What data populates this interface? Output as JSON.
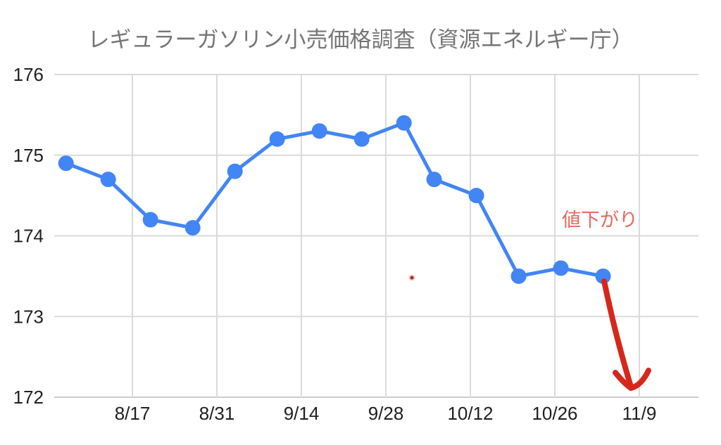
{
  "chart_data": {
    "type": "line",
    "title": "レギュラーガソリン小売価格調査（資源エネルギー庁）",
    "title_color": "#757575",
    "series": [
      {
        "name": "レギュラーガソリン小売価格",
        "color": "#4285f4",
        "points": [
          {
            "x_day": -11,
            "value": 174.9
          },
          {
            "x_day": -4,
            "value": 174.7
          },
          {
            "x_day": 3,
            "value": 174.2
          },
          {
            "x_day": 10,
            "value": 174.1
          },
          {
            "x_day": 17,
            "value": 174.8
          },
          {
            "x_day": 24,
            "value": 175.2
          },
          {
            "x_day": 31,
            "value": 175.3
          },
          {
            "x_day": 38,
            "value": 175.2
          },
          {
            "x_day": 45,
            "value": 175.4
          },
          {
            "x_day": 50,
            "value": 174.7
          },
          {
            "x_day": 57,
            "value": 174.5
          },
          {
            "x_day": 64,
            "value": 173.5
          },
          {
            "x_day": 71,
            "value": 173.6
          },
          {
            "x_day": 78,
            "value": 173.5
          }
        ]
      }
    ],
    "x_axis": {
      "tick_labels": [
        "8/17",
        "8/31",
        "9/14",
        "9/28",
        "10/12",
        "10/26",
        "11/9"
      ],
      "tick_days": [
        0,
        14,
        28,
        42,
        56,
        70,
        84
      ]
    },
    "y_axis": {
      "ticks": [
        172,
        173,
        174,
        175,
        176
      ],
      "ylim": [
        172,
        176
      ]
    },
    "grid": "on",
    "legend": "none",
    "label_color": "#1f1f1f",
    "grid_color": "#dadada",
    "axis_line_color": "#cccccc",
    "annotation": {
      "text": "値下がり",
      "text_color": "#e8695f",
      "arrow_color": "#d5271c"
    }
  }
}
